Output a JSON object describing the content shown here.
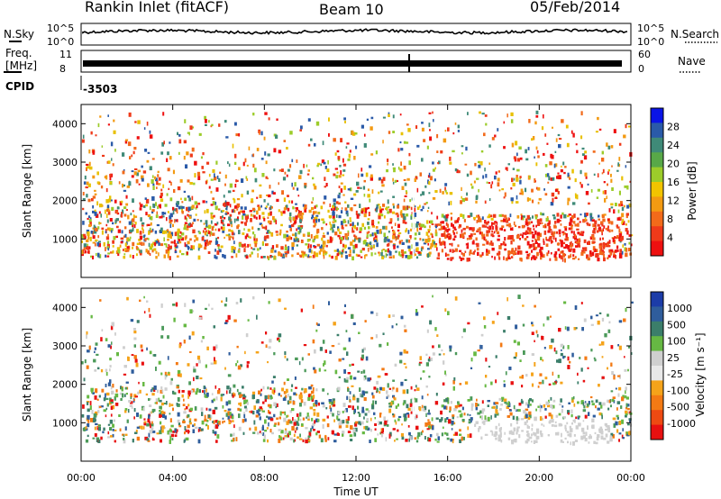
{
  "header": {
    "station": "Rankin Inlet (fitACF)",
    "beam": "Beam 10",
    "date": "05/Feb/2014"
  },
  "strips": {
    "nsky_label": "N.Sky",
    "nsearch_label": "N.Search",
    "nsky_ticks": [
      "10^5",
      "10^0"
    ],
    "nsearch_ticks": [
      "10^5",
      "10^0"
    ],
    "freq_label": "Freq.",
    "freq_unit": "[MHz]",
    "freq_ticks": [
      "11",
      "8"
    ],
    "nave_label": "Nave",
    "nave_ticks": [
      "60",
      "0"
    ],
    "cpid_label": "CPID",
    "cpid_value": "-3503"
  },
  "chart_data": [
    {
      "type": "heatmap",
      "title": "",
      "xlabel": "Time UT",
      "ylabel": "Slant Range [km]",
      "x_ticks": [
        "00:00",
        "04:00",
        "08:00",
        "12:00",
        "16:00",
        "20:00",
        "00:00"
      ],
      "xlim_hours": [
        0,
        24
      ],
      "ylim": [
        0,
        4500
      ],
      "y_ticks": [
        1000,
        2000,
        3000,
        4000
      ],
      "colorbar": {
        "label": "Power [dB]",
        "ticks": [
          "4",
          "8",
          "12",
          "16",
          "20",
          "24",
          "28"
        ],
        "colors": [
          "#0a14e6",
          "#2a5aa8",
          "#3f8a78",
          "#58a848",
          "#9ccc2a",
          "#f2c400",
          "#f39a12",
          "#f26a1a",
          "#ef3a1a",
          "#ee1010"
        ]
      }
    },
    {
      "type": "heatmap",
      "title": "",
      "xlabel": "Time UT",
      "ylabel": "Slant Range [km]",
      "x_ticks": [
        "00:00",
        "04:00",
        "08:00",
        "12:00",
        "16:00",
        "20:00",
        "00:00"
      ],
      "xlim_hours": [
        0,
        24
      ],
      "ylim": [
        0,
        4500
      ],
      "y_ticks": [
        1000,
        2000,
        3000,
        4000
      ],
      "colorbar": {
        "label": "Velocity [m s⁻¹]",
        "ticks": [
          "1000",
          "500",
          "100",
          "25",
          "-25",
          "-100",
          "-500",
          "-1000"
        ],
        "colors": [
          "#1c3ca8",
          "#2f5d9c",
          "#3b7e6a",
          "#66b843",
          "#cfcfcf",
          "#e8e8e8",
          "#f5a31a",
          "#f37a14",
          "#ee4a12",
          "#e81010"
        ]
      }
    }
  ]
}
